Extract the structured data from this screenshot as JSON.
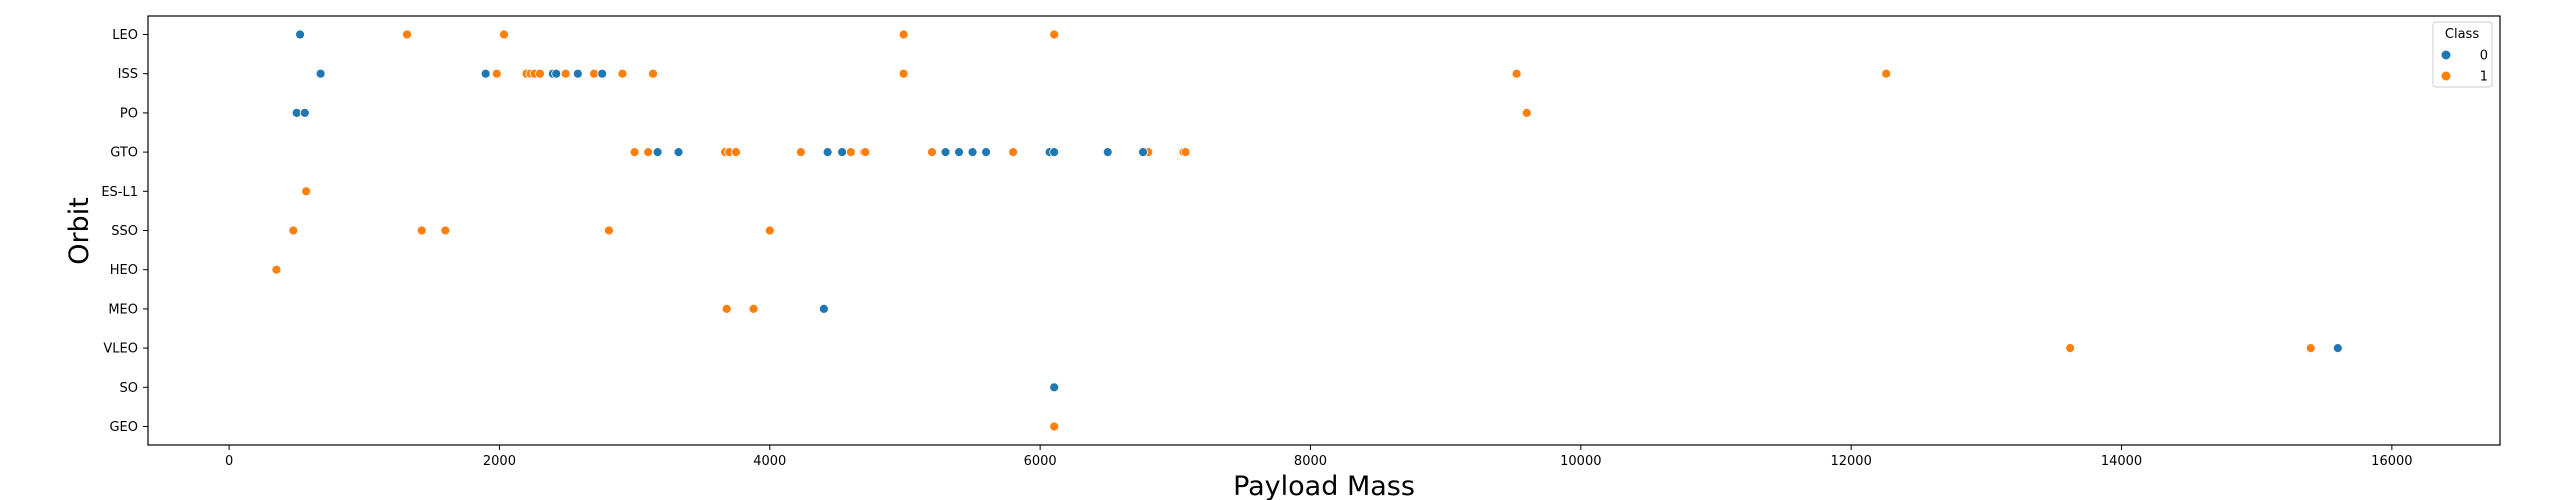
{
  "chart_data": {
    "type": "scatter",
    "title": "",
    "xlabel": "Payload Mass",
    "ylabel": "Orbit",
    "xlim": [
      -600,
      16800
    ],
    "xticks": [
      0,
      2000,
      4000,
      6000,
      8000,
      10000,
      12000,
      14000,
      16000
    ],
    "categories": [
      "LEO",
      "ISS",
      "PO",
      "GTO",
      "ES-L1",
      "SSO",
      "HEO",
      "MEO",
      "VLEO",
      "SO",
      "GEO"
    ],
    "grid": false,
    "legend": {
      "title": "Class",
      "placement": "top-right",
      "entries": [
        {
          "name": "0",
          "color": "#1f77b4"
        },
        {
          "name": "1",
          "color": "#ff7f0e"
        }
      ]
    },
    "series": [
      {
        "name": "0",
        "color": "#1f77b4",
        "points": [
          {
            "x": 525,
            "y": "LEO"
          },
          {
            "x": 677,
            "y": "ISS"
          },
          {
            "x": 1898,
            "y": "ISS"
          },
          {
            "x": 2395,
            "y": "ISS"
          },
          {
            "x": 2420,
            "y": "ISS"
          },
          {
            "x": 2580,
            "y": "ISS"
          },
          {
            "x": 2760,
            "y": "ISS"
          },
          {
            "x": 500,
            "y": "PO"
          },
          {
            "x": 560,
            "y": "PO"
          },
          {
            "x": 3170,
            "y": "GTO"
          },
          {
            "x": 3325,
            "y": "GTO"
          },
          {
            "x": 4428,
            "y": "GTO"
          },
          {
            "x": 4535,
            "y": "GTO"
          },
          {
            "x": 5300,
            "y": "GTO"
          },
          {
            "x": 5400,
            "y": "GTO"
          },
          {
            "x": 5500,
            "y": "GTO"
          },
          {
            "x": 5600,
            "y": "GTO"
          },
          {
            "x": 6070,
            "y": "GTO"
          },
          {
            "x": 6104,
            "y": "GTO"
          },
          {
            "x": 6500,
            "y": "GTO"
          },
          {
            "x": 6761,
            "y": "GTO"
          },
          {
            "x": 4400,
            "y": "MEO"
          },
          {
            "x": 15600,
            "y": "VLEO"
          },
          {
            "x": 6104,
            "y": "SO"
          }
        ]
      },
      {
        "name": "1",
        "color": "#ff7f0e",
        "points": [
          {
            "x": 1316,
            "y": "LEO"
          },
          {
            "x": 2034,
            "y": "LEO"
          },
          {
            "x": 4990,
            "y": "LEO"
          },
          {
            "x": 6104,
            "y": "LEO"
          },
          {
            "x": 1980,
            "y": "ISS"
          },
          {
            "x": 2200,
            "y": "ISS"
          },
          {
            "x": 2230,
            "y": "ISS"
          },
          {
            "x": 2260,
            "y": "ISS"
          },
          {
            "x": 2300,
            "y": "ISS"
          },
          {
            "x": 2490,
            "y": "ISS"
          },
          {
            "x": 2700,
            "y": "ISS"
          },
          {
            "x": 2910,
            "y": "ISS"
          },
          {
            "x": 3136,
            "y": "ISS"
          },
          {
            "x": 4990,
            "y": "ISS"
          },
          {
            "x": 9525,
            "y": "ISS"
          },
          {
            "x": 12259,
            "y": "ISS"
          },
          {
            "x": 9600,
            "y": "PO"
          },
          {
            "x": 3000,
            "y": "GTO"
          },
          {
            "x": 3100,
            "y": "GTO"
          },
          {
            "x": 3669,
            "y": "GTO"
          },
          {
            "x": 3700,
            "y": "GTO"
          },
          {
            "x": 3750,
            "y": "GTO"
          },
          {
            "x": 4230,
            "y": "GTO"
          },
          {
            "x": 4600,
            "y": "GTO"
          },
          {
            "x": 4696,
            "y": "GTO"
          },
          {
            "x": 4707,
            "y": "GTO"
          },
          {
            "x": 5200,
            "y": "GTO"
          },
          {
            "x": 5300,
            "y": "GTO"
          },
          {
            "x": 5800,
            "y": "GTO"
          },
          {
            "x": 6800,
            "y": "GTO"
          },
          {
            "x": 7060,
            "y": "GTO"
          },
          {
            "x": 7076,
            "y": "GTO"
          },
          {
            "x": 570,
            "y": "ES-L1"
          },
          {
            "x": 475,
            "y": "SSO"
          },
          {
            "x": 1425,
            "y": "SSO"
          },
          {
            "x": 1600,
            "y": "SSO"
          },
          {
            "x": 2810,
            "y": "SSO"
          },
          {
            "x": 4000,
            "y": "SSO"
          },
          {
            "x": 350,
            "y": "HEO"
          },
          {
            "x": 3681,
            "y": "MEO"
          },
          {
            "x": 3880,
            "y": "MEO"
          },
          {
            "x": 13620,
            "y": "VLEO"
          },
          {
            "x": 15400,
            "y": "VLEO"
          },
          {
            "x": 6104,
            "y": "GEO"
          }
        ]
      }
    ]
  }
}
